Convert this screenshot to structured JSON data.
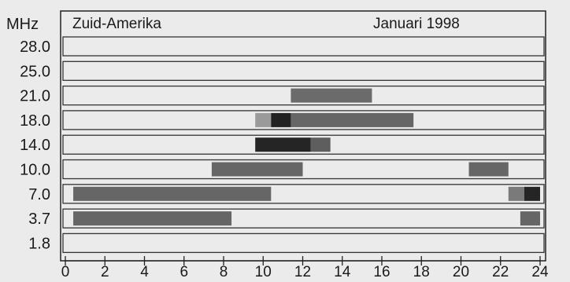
{
  "chart_data": {
    "type": "heatmap",
    "region_label": "Zuid-Amerika",
    "period_label": "Januari 1998",
    "y_unit_label": "MHz",
    "frequencies": [
      "28.0",
      "25.0",
      "21.0",
      "18.0",
      "14.0",
      "10.0",
      "7.0",
      "3.7",
      "1.8"
    ],
    "x_ticks": [
      0,
      2,
      4,
      6,
      8,
      10,
      12,
      14,
      16,
      18,
      20,
      22,
      24
    ],
    "xlim": [
      0,
      24
    ],
    "bands": [
      {
        "freq": "21.0",
        "segments": [
          {
            "start": 11.4,
            "end": 15.5,
            "shade": "#6b6b6b"
          }
        ]
      },
      {
        "freq": "18.0",
        "segments": [
          {
            "start": 9.6,
            "end": 10.4,
            "shade": "#9a9a9a"
          },
          {
            "start": 10.4,
            "end": 11.4,
            "shade": "#222222"
          },
          {
            "start": 11.4,
            "end": 17.6,
            "shade": "#666666"
          }
        ]
      },
      {
        "freq": "14.0",
        "segments": [
          {
            "start": 9.6,
            "end": 12.4,
            "shade": "#252525"
          },
          {
            "start": 12.4,
            "end": 13.4,
            "shade": "#5e5e5e"
          }
        ]
      },
      {
        "freq": "10.0",
        "segments": [
          {
            "start": 7.4,
            "end": 12.0,
            "shade": "#666666"
          },
          {
            "start": 20.4,
            "end": 22.4,
            "shade": "#666666"
          }
        ]
      },
      {
        "freq": "7.0",
        "segments": [
          {
            "start": 0.4,
            "end": 10.4,
            "shade": "#666666"
          },
          {
            "start": 22.4,
            "end": 23.2,
            "shade": "#7a7a7a"
          },
          {
            "start": 23.2,
            "end": 24.0,
            "shade": "#252525"
          }
        ]
      },
      {
        "freq": "3.7",
        "segments": [
          {
            "start": 0.4,
            "end": 8.4,
            "shade": "#666666"
          },
          {
            "start": 23.0,
            "end": 24.0,
            "shade": "#666666"
          }
        ]
      }
    ]
  }
}
